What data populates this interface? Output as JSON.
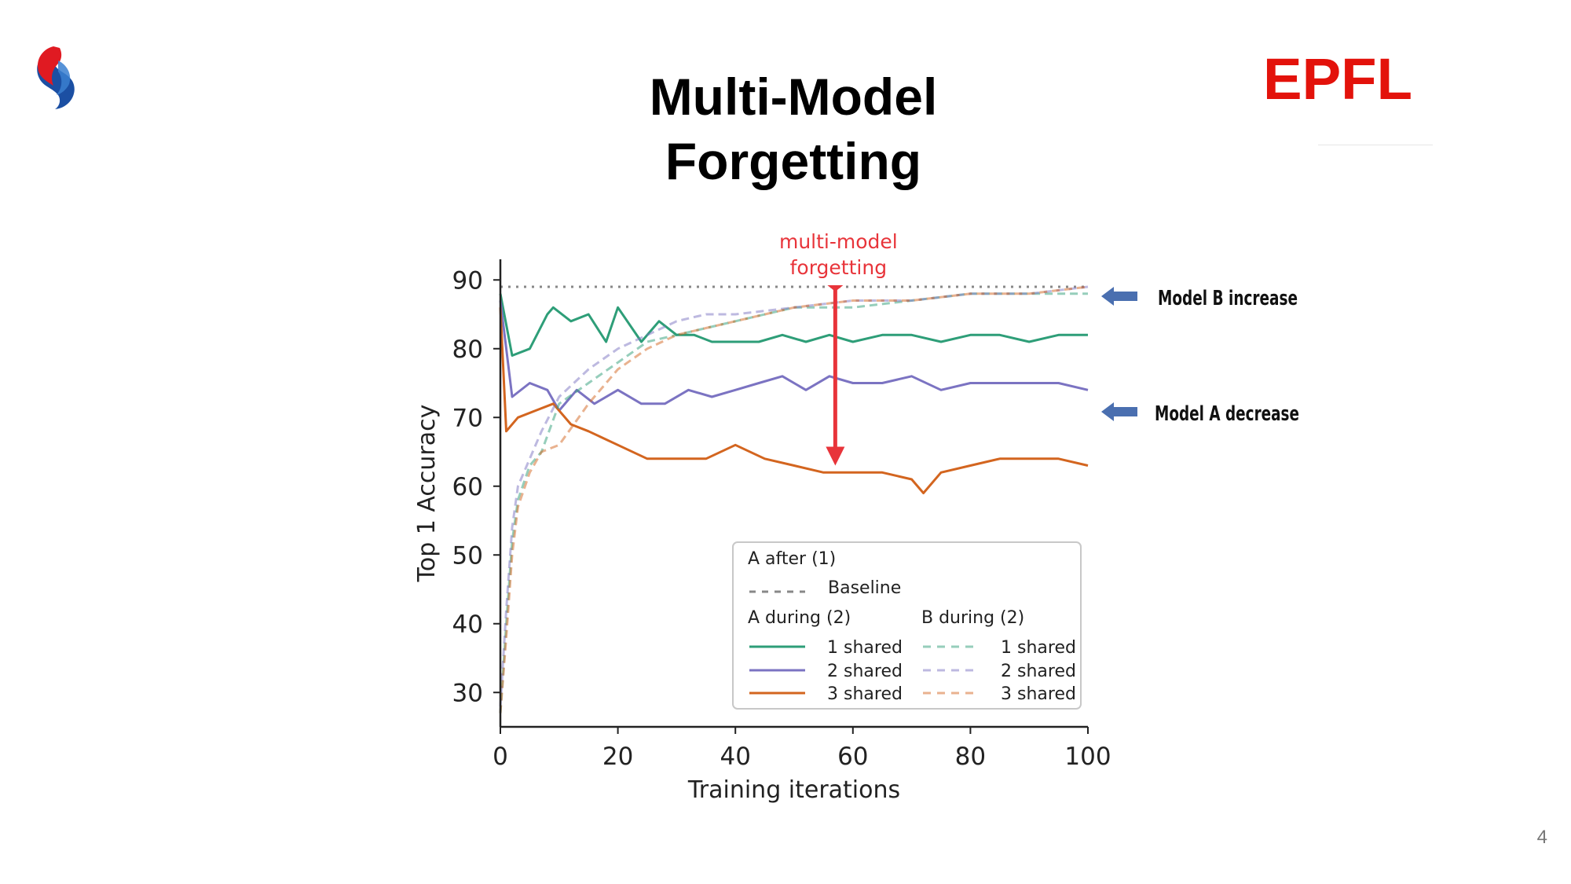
{
  "slide": {
    "title_line1": "Multi-Model",
    "title_line2": "Forgetting",
    "page_number": "4",
    "epfl_logo_text": "EPFL"
  },
  "colors": {
    "green": "#2e9e78",
    "purple": "#7b73c2",
    "orange": "#d3651f",
    "baseline": "#888888",
    "forgetting_arrow": "#e8343a",
    "callout_arrow": "#4a6fb0",
    "epfl_red": "#e3120b"
  },
  "chart_data": {
    "type": "line",
    "xlabel": "Training iterations",
    "ylabel": "Top 1 Accuracy",
    "xlim": [
      0,
      100
    ],
    "ylim": [
      25,
      93
    ],
    "xticks": [
      0,
      20,
      40,
      60,
      80,
      100
    ],
    "yticks": [
      30,
      40,
      50,
      60,
      70,
      80,
      90
    ],
    "grid": false,
    "baseline": {
      "name": "Baseline",
      "value": 89
    },
    "series": [
      {
        "name": "A during (2) 1 shared",
        "group": "A",
        "style": "solid",
        "color": "#2e9e78",
        "x": [
          0,
          2,
          5,
          8,
          9,
          12,
          15,
          18,
          20,
          24,
          27,
          30,
          33,
          36,
          40,
          44,
          48,
          52,
          56,
          60,
          65,
          70,
          75,
          80,
          85,
          90,
          95,
          100
        ],
        "y": [
          88,
          79,
          80,
          85,
          86,
          84,
          85,
          81,
          86,
          81,
          84,
          82,
          82,
          81,
          81,
          81,
          82,
          81,
          82,
          81,
          82,
          82,
          81,
          82,
          82,
          81,
          82,
          82
        ]
      },
      {
        "name": "A during (2) 2 shared",
        "group": "A",
        "style": "solid",
        "color": "#7b73c2",
        "x": [
          0,
          2,
          5,
          8,
          10,
          13,
          16,
          20,
          24,
          28,
          32,
          36,
          40,
          44,
          48,
          52,
          56,
          60,
          65,
          70,
          75,
          80,
          85,
          90,
          95,
          100
        ],
        "y": [
          87,
          73,
          75,
          74,
          71,
          74,
          72,
          74,
          72,
          72,
          74,
          73,
          74,
          75,
          76,
          74,
          76,
          75,
          75,
          76,
          74,
          75,
          75,
          75,
          75,
          74
        ]
      },
      {
        "name": "A during (2) 3 shared",
        "group": "A",
        "style": "solid",
        "color": "#d3651f",
        "x": [
          0,
          1,
          3,
          6,
          9,
          12,
          15,
          20,
          25,
          30,
          35,
          40,
          45,
          50,
          55,
          60,
          65,
          70,
          72,
          75,
          80,
          85,
          90,
          95,
          100
        ],
        "y": [
          86,
          68,
          70,
          71,
          72,
          69,
          68,
          66,
          64,
          64,
          64,
          66,
          64,
          63,
          62,
          62,
          62,
          61,
          59,
          62,
          63,
          64,
          64,
          64,
          63
        ]
      },
      {
        "name": "B during (2) 1 shared",
        "group": "B",
        "style": "dashed",
        "color": "#2e9e78",
        "x": [
          0,
          1,
          2,
          3,
          5,
          7,
          10,
          15,
          20,
          25,
          30,
          35,
          40,
          50,
          60,
          70,
          80,
          90,
          100
        ],
        "y": [
          27,
          40,
          52,
          58,
          63,
          65,
          72,
          75,
          78,
          81,
          82,
          83,
          84,
          86,
          86,
          87,
          88,
          88,
          88
        ]
      },
      {
        "name": "B during (2) 2 shared",
        "group": "B",
        "style": "dashed",
        "color": "#7b73c2",
        "x": [
          0,
          1,
          2,
          3,
          5,
          7,
          10,
          15,
          20,
          25,
          30,
          35,
          40,
          50,
          60,
          70,
          80,
          90,
          100
        ],
        "y": [
          28,
          42,
          54,
          60,
          64,
          68,
          73,
          77,
          80,
          82,
          84,
          85,
          85,
          86,
          87,
          87,
          88,
          88,
          89
        ]
      },
      {
        "name": "B during (2) 3 shared",
        "group": "B",
        "style": "dashed",
        "color": "#d3651f",
        "x": [
          0,
          1,
          2,
          3,
          5,
          7,
          10,
          15,
          20,
          25,
          30,
          35,
          40,
          50,
          60,
          70,
          80,
          90,
          100
        ],
        "y": [
          27,
          38,
          50,
          57,
          62,
          65,
          66,
          72,
          77,
          80,
          82,
          83,
          84,
          86,
          87,
          87,
          88,
          88,
          89
        ]
      }
    ],
    "legend": {
      "placement": "lower-right",
      "title_after": "A after (1)",
      "baseline_label": "Baseline",
      "col_a_title": "A during (2)",
      "col_b_title": "B during (2)",
      "labels": [
        "1 shared",
        "2 shared",
        "3 shared"
      ]
    },
    "annotations": {
      "forgetting_line1": "multi-model",
      "forgetting_line2": "forgetting",
      "forgetting_x": 57,
      "forgetting_from_y": 89,
      "forgetting_to_y": 63,
      "callout_b": "Model B increase",
      "callout_a": "Model A decrease"
    }
  }
}
